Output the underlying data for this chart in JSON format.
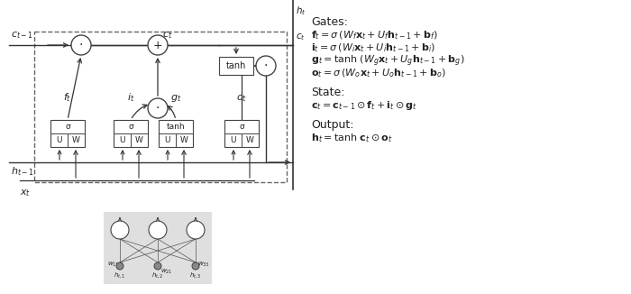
{
  "bg_color": "#ffffff",
  "line_color": "#333333",
  "box_fill": "#ffffff",
  "box_edge": "#444444",
  "circle_fill": "#ffffff",
  "circle_edge": "#444444",
  "dashed_box_color": "#666666",
  "text_color": "#222222",
  "gray_fill": "#d8d8d8",
  "gates_title": "Gates:",
  "gate_f": "$\\mathbf{f}_t = \\sigma\\,(W_f\\mathbf{x}_t + U_f\\mathbf{h}_{t-1} + \\mathbf{b}_f)$",
  "gate_i": "$\\mathbf{i}_t = \\sigma\\,(W_i\\mathbf{x}_t + U_i\\mathbf{h}_{t-1} + \\mathbf{b}_i)$",
  "gate_g": "$\\mathbf{g}_t = \\tanh\\,(W_g\\mathbf{x}_t + U_g\\mathbf{h}_{t-1} + \\mathbf{b}_g)$",
  "gate_o": "$\\mathbf{o}_t = \\sigma\\,(W_o\\mathbf{x}_t + U_o\\mathbf{h}_{t-1} + \\mathbf{b}_o)$",
  "state_title": "State:",
  "state_eq": "$\\mathbf{c}_t = \\mathbf{c}_{t-1} \\odot \\mathbf{f}_t + \\mathbf{i}_t \\odot \\mathbf{g}_t$",
  "output_title": "Output:",
  "output_eq": "$\\mathbf{h}_t = \\tanh\\,\\mathbf{c}_t \\odot \\mathbf{o}_t$",
  "figsize": [
    7.0,
    3.26
  ],
  "dpi": 100
}
